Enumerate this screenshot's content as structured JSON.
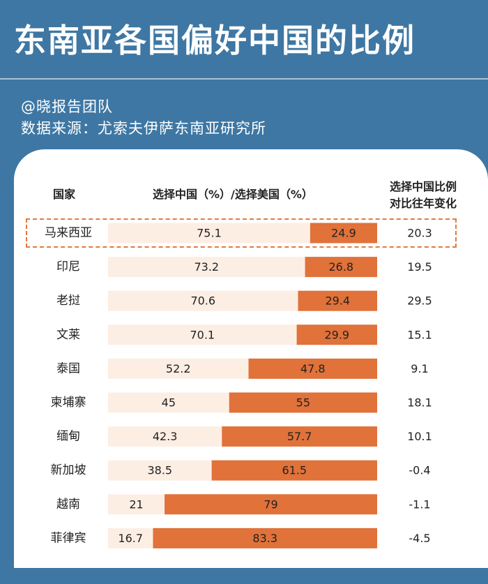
{
  "title": "东南亚各国偏好中国的比例",
  "author": "@晓报告团队",
  "source": "数据来源：尤索夫伊萨东南亚研究所",
  "headers": {
    "country": "国家",
    "ratio": "选择中国（%）/选择美国（%）",
    "change_line1": "选择中国比例",
    "change_line2": "对比往年变化"
  },
  "colors": {
    "background": "#3e77a3",
    "china_bar": "#fdeee4",
    "usa_bar": "#e0723a",
    "highlight": "#e07a3e"
  },
  "chart_data": {
    "type": "bar",
    "orientation": "horizontal-stacked-100",
    "categories": [
      "马来西亚",
      "印尼",
      "老挝",
      "文莱",
      "泰国",
      "柬埔寨",
      "缅甸",
      "新加坡",
      "越南",
      "菲律宾"
    ],
    "series": [
      {
        "values": [
          75.1,
          73.2,
          70.6,
          70.1,
          52.2,
          45,
          42.3,
          38.5,
          21,
          16.7
        ]
      },
      {
        "values": [
          24.9,
          26.8,
          29.4,
          29.9,
          47.8,
          55,
          57.7,
          61.5,
          79,
          83.3
        ]
      }
    ],
    "change": [
      "20.3",
      "19.5",
      "29.5",
      "15.1",
      "9.1",
      "18.1",
      "10.1",
      "-0.4",
      "-1.1",
      "-4.5"
    ],
    "china_labels": [
      "75.1",
      "73.2",
      "70.6",
      "70.1",
      "52.2",
      "45",
      "42.3",
      "38.5",
      "21",
      "16.7"
    ],
    "usa_labels": [
      "24.9",
      "26.8",
      "29.4",
      "29.9",
      "47.8",
      "55",
      "57.7",
      "61.5",
      "79",
      "83.3"
    ],
    "highlighted_category": "马来西亚",
    "xlim": [
      0,
      100
    ]
  }
}
